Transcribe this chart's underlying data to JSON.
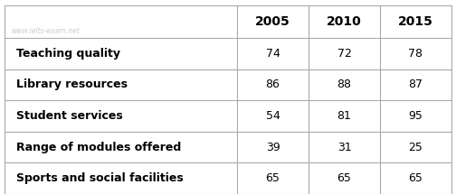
{
  "rows": [
    {
      "label": "Teaching quality",
      "values": [
        74,
        72,
        78
      ]
    },
    {
      "label": "Library resources",
      "values": [
        86,
        88,
        87
      ]
    },
    {
      "label": "Student services",
      "values": [
        54,
        81,
        95
      ]
    },
    {
      "label": "Range of modules offered",
      "values": [
        39,
        31,
        25
      ]
    },
    {
      "label": "Sports and social facilities",
      "values": [
        65,
        65,
        65
      ]
    }
  ],
  "col_headers": [
    "2005",
    "2010",
    "2015"
  ],
  "watermark": "www.ielts-exam.net",
  "border_color": "#aaaaaa",
  "header_text_color": "#000000",
  "label_text_color": "#000000",
  "value_text_color": "#000000",
  "fig_width": 5.04,
  "fig_height": 2.15,
  "dpi": 100
}
